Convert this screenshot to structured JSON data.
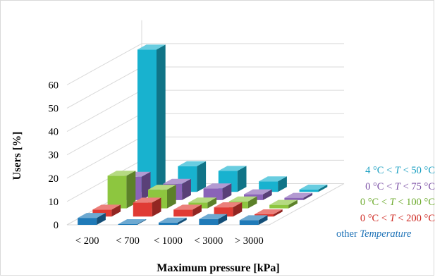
{
  "chart_data": {
    "type": "bar",
    "subtype": "3d-grouped-column",
    "title": "",
    "xlabel": "Maximum pressure [kPa]",
    "ylabel": "Users [%]",
    "categories": [
      "< 200",
      "< 700",
      "< 1000",
      "< 3000",
      "> 3000"
    ],
    "ylim": [
      0,
      70
    ],
    "yticks": [
      "0",
      "10",
      "20",
      "30",
      "40",
      "50",
      "60"
    ],
    "grid": true,
    "legend_position": "right",
    "series": [
      {
        "name": "other Temperature",
        "color": "#1f7ab8",
        "values": [
          3,
          0.3,
          1,
          2.5,
          2
        ]
      },
      {
        "name": "0 °C < T < 200 °C",
        "color": "#e03b34",
        "values": [
          3,
          6,
          3,
          4,
          1
        ]
      },
      {
        "name": "0 °C < T < 100 °C",
        "color": "#8dc63f",
        "values": [
          14,
          8,
          2.5,
          3,
          1.5
        ]
      },
      {
        "name": "0 °C < T < 75 °C",
        "color": "#8a63b8",
        "values": [
          10,
          7,
          5,
          2.5,
          1
        ]
      },
      {
        "name": "4 °C < T < 50 °C",
        "color": "#18b2cf",
        "values": [
          61,
          11,
          9,
          4.5,
          1
        ]
      }
    ]
  },
  "legend": [
    {
      "pre": "4 °C < ",
      "var": "T",
      "post": " <  50 °C",
      "color": "#1a9fc1"
    },
    {
      "pre": "0 °C < ",
      "var": "T",
      "post": " <  75 °C",
      "color": "#7b4fa5"
    },
    {
      "pre": "0 °C < ",
      "var": "T",
      "post": " < 100 °C",
      "color": "#6eab2f"
    },
    {
      "pre": "0 °C < ",
      "var": "T",
      "post": " < 200 °C",
      "color": "#cf2a23"
    },
    {
      "pre": "other ",
      "var": "Temperature",
      "post": "",
      "color": "#1f73b7"
    }
  ]
}
